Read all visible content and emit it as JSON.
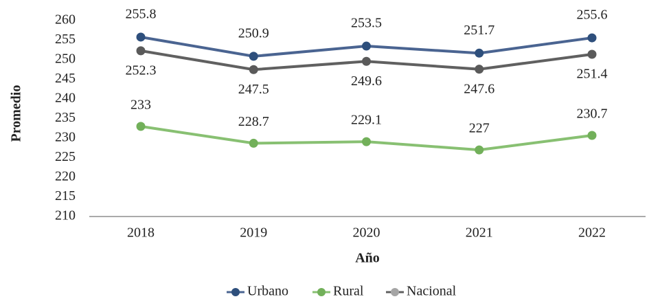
{
  "chart_data": {
    "type": "line",
    "x_label": "Año",
    "y_label": "Promedio",
    "categories": [
      "2018",
      "2019",
      "2020",
      "2021",
      "2022"
    ],
    "series": [
      {
        "name": "Urbano",
        "color": "#2e4f7c",
        "line_color": "#4a6491",
        "values": [
          255.8,
          250.9,
          253.5,
          251.7,
          255.6
        ]
      },
      {
        "name": "Rural",
        "color": "#72b05a",
        "line_color": "#88c072",
        "values": [
          233,
          228.7,
          229.1,
          227,
          230.7
        ]
      },
      {
        "name": "Nacional",
        "color": "#a5a5a5",
        "line_color": "#606060",
        "marker_color": "#5a5a5a",
        "values": [
          252.3,
          247.5,
          249.6,
          247.6,
          251.4
        ]
      }
    ],
    "ylim": [
      210,
      260
    ],
    "yticks": [
      210,
      215,
      220,
      225,
      230,
      235,
      240,
      245,
      250,
      255,
      260
    ],
    "grid": false,
    "legend": "bottom"
  }
}
